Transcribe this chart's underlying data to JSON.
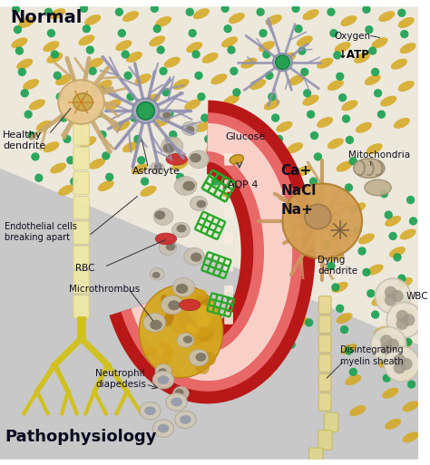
{
  "title_normal": "Normal",
  "title_patho": "Pathophysiology",
  "labels": {
    "healthy_dendrite": "Healthy\ndendrite",
    "astrocyte": "Astrocyte",
    "oxygen": "Oxygen",
    "atp": "↓ATP",
    "mitochondria": "Mitochondria",
    "ca": "Ca+",
    "nacl": "NaCl",
    "na": "Na+",
    "dying_dendrite": "Dying\ndendrite",
    "wbc": "WBC",
    "disintegrating": "Disintegrating\nmyelin sheath",
    "glucose": "Glucose",
    "aqp4": "AQP 4",
    "endothelial": "Endothelial cells\nbreaking apart",
    "rbc": "RBC",
    "microthrombus": "Microthrombus",
    "neutrophil": "Neutrophil\ndiapedesis"
  },
  "normal_bg": "#ede8dc",
  "patho_bg": "#c8c8c8",
  "yellow_color": "#d4a820",
  "green_color": "#18a050",
  "vessel_dark": "#b81818",
  "vessel_mid": "#e05050",
  "vessel_light": "#f0a0a0",
  "vessel_lumen": "#f8d0c8",
  "gold_color": "#d4a020",
  "cell_color": "#c0b8a8",
  "cell_nucleus": "#706050",
  "rbc_color": "#cc3030",
  "green_grid": "#28a828",
  "astrocyte_color": "#b0b4c8",
  "neuron_body": "#d4a060",
  "neuron_branch": "#c89050",
  "healthy_body": "#e8c890",
  "healthy_branch": "#d4b870",
  "healthy_axon": "#e8e0a0",
  "yellow_axon": "#d0c020",
  "wbc_color": "#e0d8c8",
  "wbc_nucleus": "#908878",
  "mito_color": "#b8a888"
}
